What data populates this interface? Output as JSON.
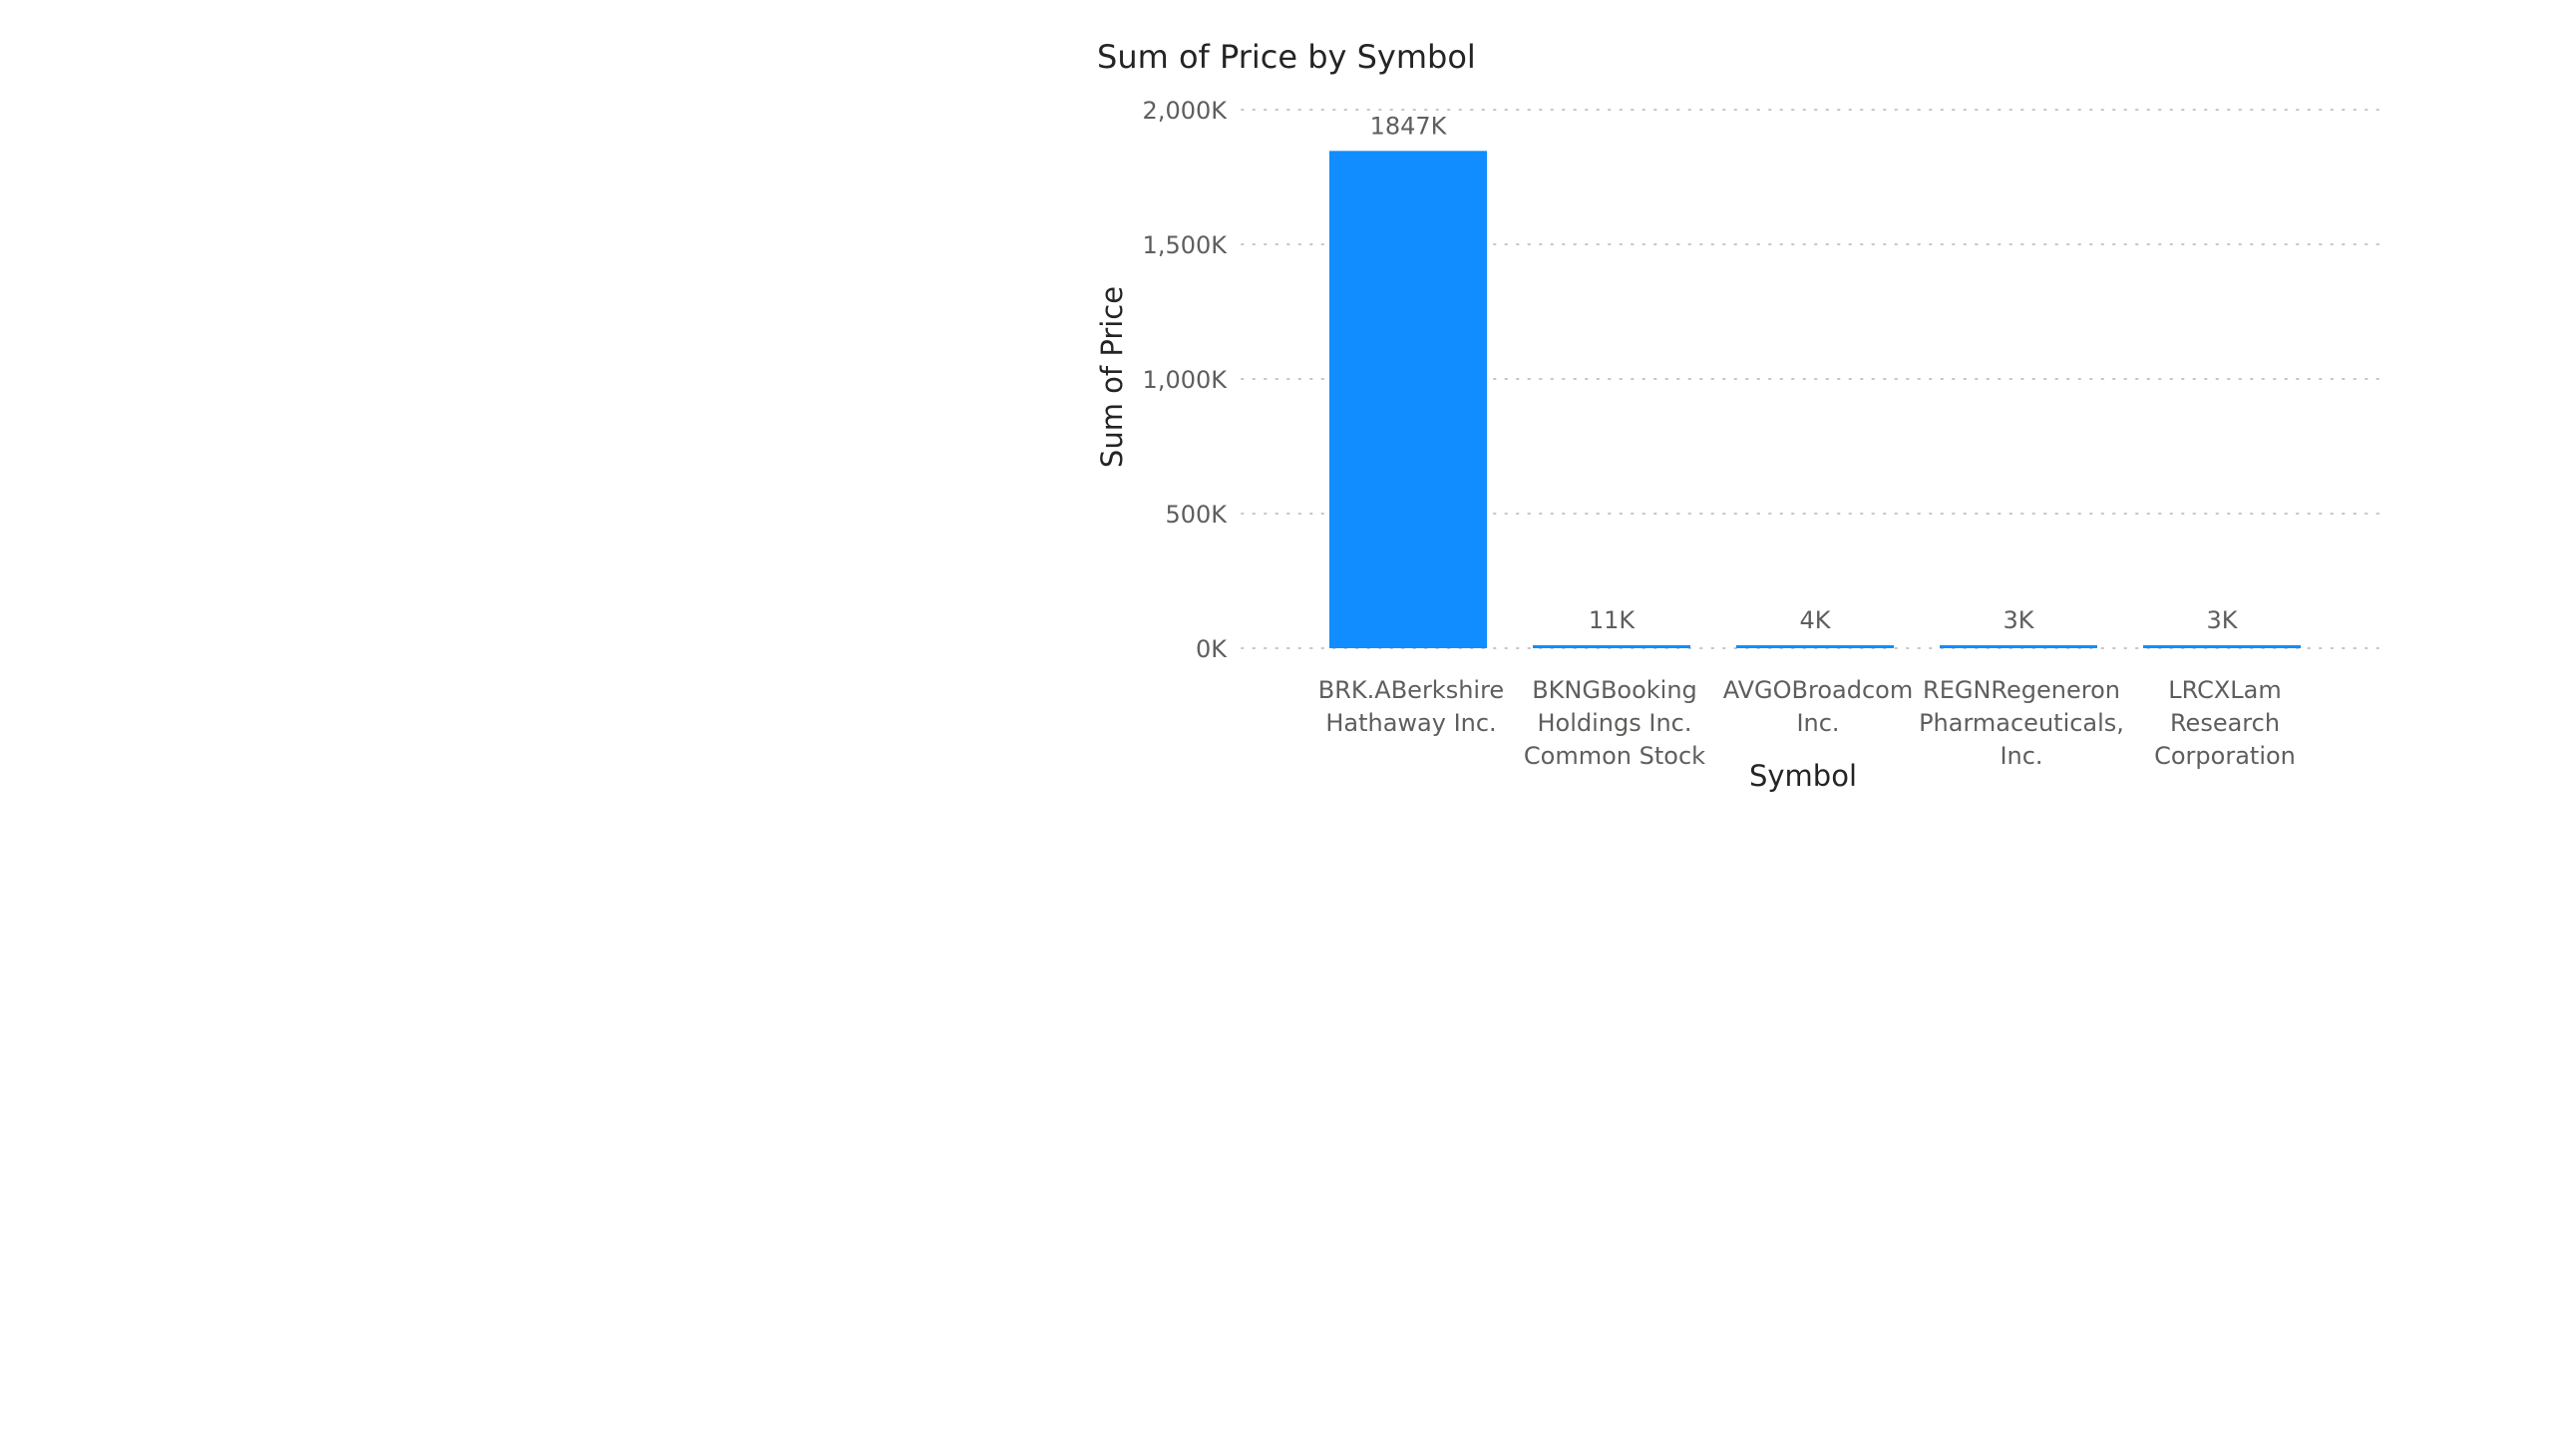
{
  "chart_data": {
    "type": "bar",
    "title": "Sum of Price by Symbol",
    "xlabel": "Symbol",
    "ylabel": "Sum of Price",
    "categories": [
      "BRK.ABerkshire Hathaway Inc.",
      "BKNGBooking Holdings Inc. Common Stock",
      "AVGOBroadcom Inc.",
      "REGNRegeneron Pharmaceuticals, Inc.",
      "LRCXLam Research Corporation"
    ],
    "category_label_lines": [
      [
        "BRK.ABerkshire",
        "Hathaway Inc."
      ],
      [
        "BKNGBooking",
        "Holdings Inc.",
        "Common Stock"
      ],
      [
        "AVGOBroadcom",
        "Inc."
      ],
      [
        "REGNRegeneron",
        "Pharmaceuticals,",
        "Inc."
      ],
      [
        "LRCXLam",
        "Research",
        "Corporation"
      ]
    ],
    "values": [
      1847000,
      11000,
      4000,
      3000,
      3000
    ],
    "data_labels": [
      "1847K",
      "11K",
      "4K",
      "3K",
      "3K"
    ],
    "ylim": [
      0,
      2000000
    ],
    "yticks": [
      0,
      500000,
      1000000,
      1500000,
      2000000
    ],
    "ytick_labels": [
      "0K",
      "500K",
      "1,000K",
      "1,500K",
      "2,000K"
    ],
    "grid": true,
    "legend": false,
    "bar_color": "#118DFF",
    "text_color": "#252423",
    "tick_label_color": "#605E5C",
    "gridline_color": "#C8C6C4"
  }
}
